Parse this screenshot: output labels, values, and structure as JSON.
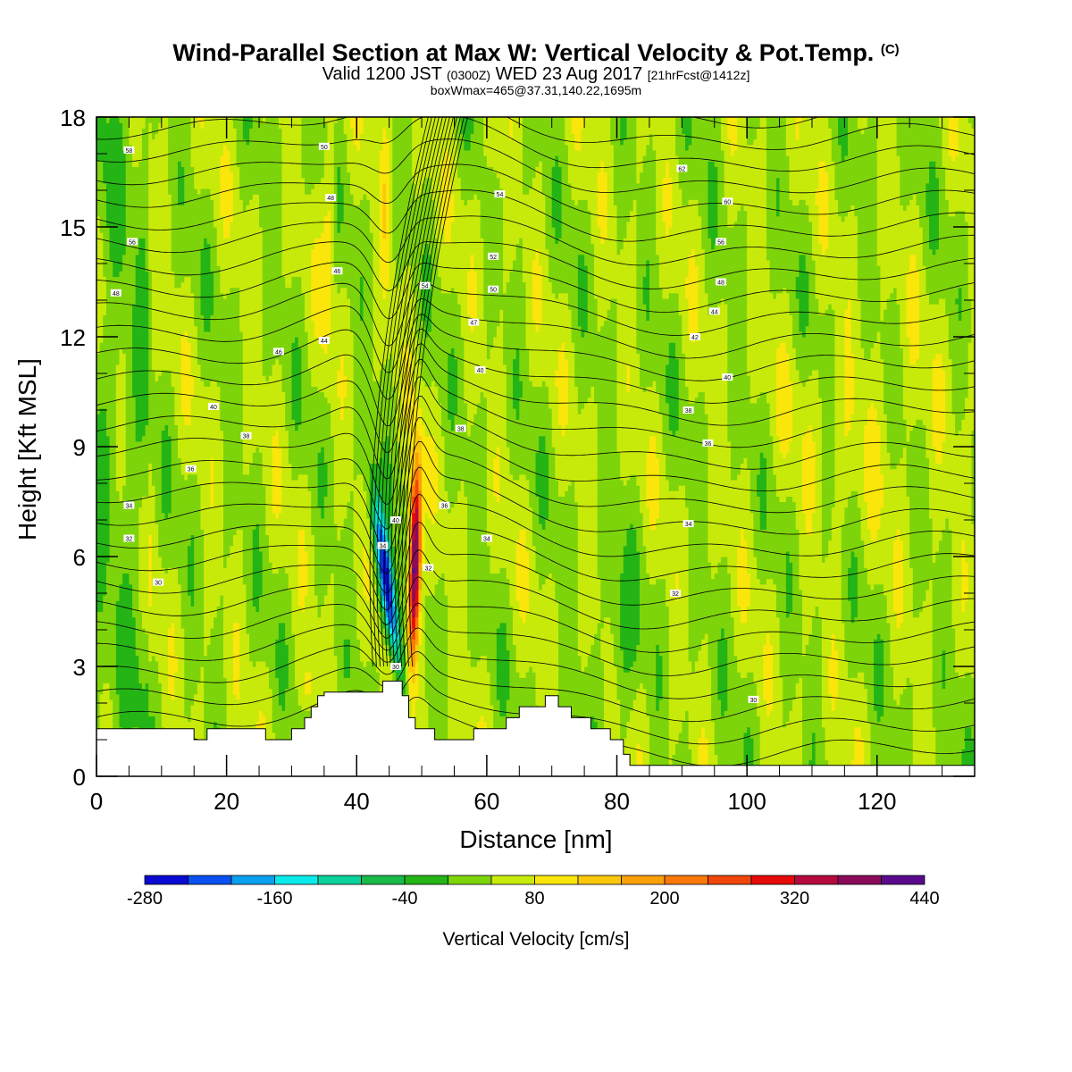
{
  "title": {
    "main": "Wind-Parallel Section at Max W: Vertical Velocity & Pot.Temp.",
    "copyright": "(C)",
    "valid_prefix": "Valid 1200 JST",
    "valid_utc": "(0300Z)",
    "valid_date": "WED 23 Aug 2017",
    "forecast": "[21hrFcst@1412z]",
    "box_info": "boxWmax=465@37.31,140.22,1695m"
  },
  "chart_data": {
    "type": "heatmap",
    "xlabel": "Distance [nm]",
    "ylabel": "Height [Kft MSL]",
    "xlim": [
      0,
      135
    ],
    "ylim": [
      0,
      18
    ],
    "x_ticks": [
      0,
      20,
      40,
      60,
      80,
      100,
      120
    ],
    "y_ticks": [
      0,
      3,
      6,
      9,
      12,
      15,
      18
    ],
    "colorbar": {
      "label": "Vertical Velocity [cm/s]",
      "min": -280,
      "max": 440,
      "step": 40,
      "tick_labels": [
        -280,
        -160,
        -40,
        80,
        200,
        320,
        440
      ],
      "colors": [
        "#0a0ad2",
        "#0a50f0",
        "#0aa0f0",
        "#0aeaea",
        "#0ad29a",
        "#1aba4a",
        "#24b416",
        "#7ed40a",
        "#c8ea0a",
        "#fae60a",
        "#fac80a",
        "#faa00a",
        "#fa780a",
        "#f0460a",
        "#e60a0a",
        "#b40a3c",
        "#8c0a5a",
        "#5a0a8c"
      ]
    },
    "terrain_kft": [
      [
        0,
        1.3
      ],
      [
        15,
        1.3
      ],
      [
        15,
        1.0
      ],
      [
        17,
        1.0
      ],
      [
        17,
        1.3
      ],
      [
        26,
        1.3
      ],
      [
        26,
        1.0
      ],
      [
        30,
        1.0
      ],
      [
        30,
        1.3
      ],
      [
        32,
        1.3
      ],
      [
        32,
        1.6
      ],
      [
        33,
        1.6
      ],
      [
        33,
        1.9
      ],
      [
        34,
        1.9
      ],
      [
        34,
        2.2
      ],
      [
        35,
        2.2
      ],
      [
        35,
        2.3
      ],
      [
        44,
        2.3
      ],
      [
        44,
        2.6
      ],
      [
        47,
        2.6
      ],
      [
        47,
        2.2
      ],
      [
        48,
        2.2
      ],
      [
        48,
        1.6
      ],
      [
        49,
        1.6
      ],
      [
        49,
        1.3
      ],
      [
        52,
        1.3
      ],
      [
        52,
        1.0
      ],
      [
        58,
        1.0
      ],
      [
        58,
        1.3
      ],
      [
        63,
        1.3
      ],
      [
        63,
        1.6
      ],
      [
        65,
        1.6
      ],
      [
        65,
        1.9
      ],
      [
        69,
        1.9
      ],
      [
        69,
        2.2
      ],
      [
        71,
        2.2
      ],
      [
        71,
        1.9
      ],
      [
        73,
        1.9
      ],
      [
        73,
        1.6
      ],
      [
        76,
        1.6
      ],
      [
        76,
        1.3
      ],
      [
        79,
        1.3
      ],
      [
        79,
        1.0
      ],
      [
        81,
        1.0
      ],
      [
        81,
        0.6
      ],
      [
        82,
        0.6
      ],
      [
        82,
        0.3
      ],
      [
        135,
        0.3
      ]
    ],
    "theta_labels": [
      {
        "x": 5,
        "y": 17.1,
        "v": "58"
      },
      {
        "x": 5.5,
        "y": 14.6,
        "v": "56"
      },
      {
        "x": 3,
        "y": 13.2,
        "v": "48"
      },
      {
        "x": 28,
        "y": 11.6,
        "v": "46"
      },
      {
        "x": 18,
        "y": 10.1,
        "v": "40"
      },
      {
        "x": 23,
        "y": 9.3,
        "v": "38"
      },
      {
        "x": 14.5,
        "y": 8.4,
        "v": "36"
      },
      {
        "x": 5,
        "y": 7.4,
        "v": "34"
      },
      {
        "x": 5,
        "y": 6.5,
        "v": "32"
      },
      {
        "x": 9.5,
        "y": 5.3,
        "v": "30"
      },
      {
        "x": 35,
        "y": 17.2,
        "v": "50"
      },
      {
        "x": 36,
        "y": 15.8,
        "v": "48"
      },
      {
        "x": 37,
        "y": 13.8,
        "v": "46"
      },
      {
        "x": 35,
        "y": 11.9,
        "v": "44"
      },
      {
        "x": 62,
        "y": 15.9,
        "v": "54"
      },
      {
        "x": 61,
        "y": 14.2,
        "v": "52"
      },
      {
        "x": 61,
        "y": 13.3,
        "v": "50"
      },
      {
        "x": 58,
        "y": 12.4,
        "v": "47"
      },
      {
        "x": 59,
        "y": 11.1,
        "v": "40"
      },
      {
        "x": 56,
        "y": 9.5,
        "v": "38"
      },
      {
        "x": 53.5,
        "y": 7.4,
        "v": "36"
      },
      {
        "x": 60,
        "y": 6.5,
        "v": "34"
      },
      {
        "x": 51,
        "y": 5.7,
        "v": "32"
      },
      {
        "x": 50.5,
        "y": 13.4,
        "v": "54"
      },
      {
        "x": 90,
        "y": 16.6,
        "v": "62"
      },
      {
        "x": 97,
        "y": 15.7,
        "v": "60"
      },
      {
        "x": 96,
        "y": 14.6,
        "v": "56"
      },
      {
        "x": 96,
        "y": 13.5,
        "v": "48"
      },
      {
        "x": 95,
        "y": 12.7,
        "v": "44"
      },
      {
        "x": 92,
        "y": 12.0,
        "v": "42"
      },
      {
        "x": 97,
        "y": 10.9,
        "v": "40"
      },
      {
        "x": 91,
        "y": 10.0,
        "v": "38"
      },
      {
        "x": 94,
        "y": 9.1,
        "v": "36"
      },
      {
        "x": 91,
        "y": 6.9,
        "v": "34"
      },
      {
        "x": 89,
        "y": 5.0,
        "v": "32"
      },
      {
        "x": 101,
        "y": 2.1,
        "v": "30"
      },
      {
        "x": 46,
        "y": 3.0,
        "v": "30"
      },
      {
        "x": 44,
        "y": 6.3,
        "v": "34"
      },
      {
        "x": 46,
        "y": 7.0,
        "v": "40"
      }
    ]
  }
}
